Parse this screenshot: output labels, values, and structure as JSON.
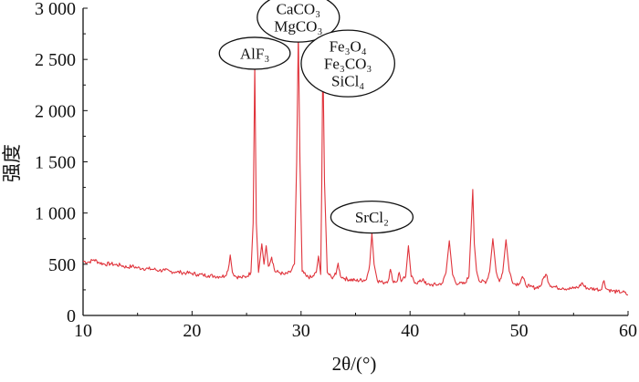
{
  "chart_data": {
    "type": "line",
    "title": "",
    "xlabel": "2θ/(°)",
    "ylabel": "强度",
    "xlim": [
      10,
      60
    ],
    "ylim": [
      0,
      3000
    ],
    "xticks": [
      10,
      20,
      30,
      40,
      50,
      60
    ],
    "xtick_labels": [
      "10",
      "20",
      "30",
      "40",
      "50",
      "60"
    ],
    "yticks": [
      0,
      500,
      1000,
      1500,
      2000,
      2500,
      3000
    ],
    "ytick_labels": [
      "0",
      "500",
      "1 000",
      "1 500",
      "2 000",
      "2 500",
      "3 000"
    ],
    "grid": false,
    "series": [
      {
        "color": "#e0343c",
        "points": [
          [
            10,
            530
          ],
          [
            10.5,
            520
          ],
          [
            11,
            545
          ],
          [
            11.5,
            515
          ],
          [
            12,
            500
          ],
          [
            12.5,
            505
          ],
          [
            13,
            495
          ],
          [
            13.5,
            490
          ],
          [
            14,
            470
          ],
          [
            14.5,
            480
          ],
          [
            15,
            465
          ],
          [
            15.5,
            460
          ],
          [
            16,
            455
          ],
          [
            16.5,
            450
          ],
          [
            17,
            440
          ],
          [
            17.5,
            440
          ],
          [
            18,
            430
          ],
          [
            18.5,
            425
          ],
          [
            19,
            420
          ],
          [
            19.5,
            415
          ],
          [
            20,
            410
          ],
          [
            20.5,
            400
          ],
          [
            21,
            395
          ],
          [
            21.5,
            390
          ],
          [
            22,
            385
          ],
          [
            22.5,
            380
          ],
          [
            23,
            385
          ],
          [
            23.3,
            440
          ],
          [
            23.5,
            590
          ],
          [
            23.7,
            420
          ],
          [
            24,
            380
          ],
          [
            24.5,
            370
          ],
          [
            25,
            380
          ],
          [
            25.4,
            420
          ],
          [
            25.6,
            900
          ],
          [
            25.75,
            2450
          ],
          [
            25.9,
            900
          ],
          [
            26.1,
            420
          ],
          [
            26.4,
            700
          ],
          [
            26.6,
            500
          ],
          [
            26.8,
            680
          ],
          [
            27,
            480
          ],
          [
            27.3,
            570
          ],
          [
            27.6,
            430
          ],
          [
            28,
            420
          ],
          [
            28.5,
            400
          ],
          [
            29,
            420
          ],
          [
            29.4,
            500
          ],
          [
            29.6,
            1500
          ],
          [
            29.75,
            2760
          ],
          [
            29.9,
            1500
          ],
          [
            30.1,
            430
          ],
          [
            30.5,
            380
          ],
          [
            31,
            370
          ],
          [
            31.4,
            420
          ],
          [
            31.6,
            580
          ],
          [
            31.8,
            400
          ],
          [
            31.9,
            1300
          ],
          [
            32,
            2560
          ],
          [
            32.15,
            1300
          ],
          [
            32.4,
            420
          ],
          [
            32.8,
            370
          ],
          [
            33.2,
            400
          ],
          [
            33.4,
            510
          ],
          [
            33.6,
            390
          ],
          [
            34,
            360
          ],
          [
            35,
            340
          ],
          [
            36,
            350
          ],
          [
            36.3,
            500
          ],
          [
            36.5,
            800
          ],
          [
            36.7,
            500
          ],
          [
            37,
            340
          ],
          [
            37.5,
            320
          ],
          [
            38,
            340
          ],
          [
            38.2,
            450
          ],
          [
            38.4,
            340
          ],
          [
            38.8,
            330
          ],
          [
            39,
            420
          ],
          [
            39.2,
            330
          ],
          [
            39.6,
            380
          ],
          [
            39.85,
            680
          ],
          [
            40.1,
            380
          ],
          [
            40.5,
            320
          ],
          [
            41,
            330
          ],
          [
            41.2,
            360
          ],
          [
            41.5,
            300
          ],
          [
            42,
            300
          ],
          [
            42.5,
            300
          ],
          [
            43,
            320
          ],
          [
            43.3,
            420
          ],
          [
            43.6,
            730
          ],
          [
            43.9,
            400
          ],
          [
            44.2,
            320
          ],
          [
            44.5,
            310
          ],
          [
            45,
            310
          ],
          [
            45.4,
            380
          ],
          [
            45.6,
            850
          ],
          [
            45.75,
            1230
          ],
          [
            45.9,
            700
          ],
          [
            46.1,
            440
          ],
          [
            46.4,
            330
          ],
          [
            47,
            330
          ],
          [
            47.3,
            430
          ],
          [
            47.6,
            750
          ],
          [
            47.9,
            430
          ],
          [
            48.2,
            330
          ],
          [
            48.5,
            420
          ],
          [
            48.8,
            740
          ],
          [
            49.1,
            430
          ],
          [
            49.5,
            310
          ],
          [
            50,
            310
          ],
          [
            50.3,
            380
          ],
          [
            50.6,
            300
          ],
          [
            51,
            280
          ],
          [
            51.5,
            270
          ],
          [
            52,
            290
          ],
          [
            52.3,
            380
          ],
          [
            52.5,
            400
          ],
          [
            52.8,
            300
          ],
          [
            53.5,
            270
          ],
          [
            54,
            270
          ],
          [
            54.5,
            260
          ],
          [
            55,
            265
          ],
          [
            55.5,
            280
          ],
          [
            55.8,
            320
          ],
          [
            56,
            280
          ],
          [
            56.5,
            260
          ],
          [
            57,
            260
          ],
          [
            57.5,
            250
          ],
          [
            57.8,
            340
          ],
          [
            58,
            260
          ],
          [
            58.5,
            240
          ],
          [
            59,
            230
          ],
          [
            59.5,
            230
          ],
          [
            60,
            200
          ]
        ]
      }
    ],
    "annotations": [
      {
        "lines": [
          "AlF₃"
        ],
        "x": 25.75,
        "y": 2560
      },
      {
        "lines": [
          "CaCO₃",
          "MgCO₃"
        ],
        "x": 29.75,
        "y": 2910
      },
      {
        "lines": [
          "Fe₃O₄",
          "Fe₃CO₃",
          "SiCl₄"
        ],
        "x": 34.3,
        "y": 2460
      },
      {
        "lines": [
          "SrCl₂"
        ],
        "x": 36.5,
        "y": 960
      }
    ]
  }
}
